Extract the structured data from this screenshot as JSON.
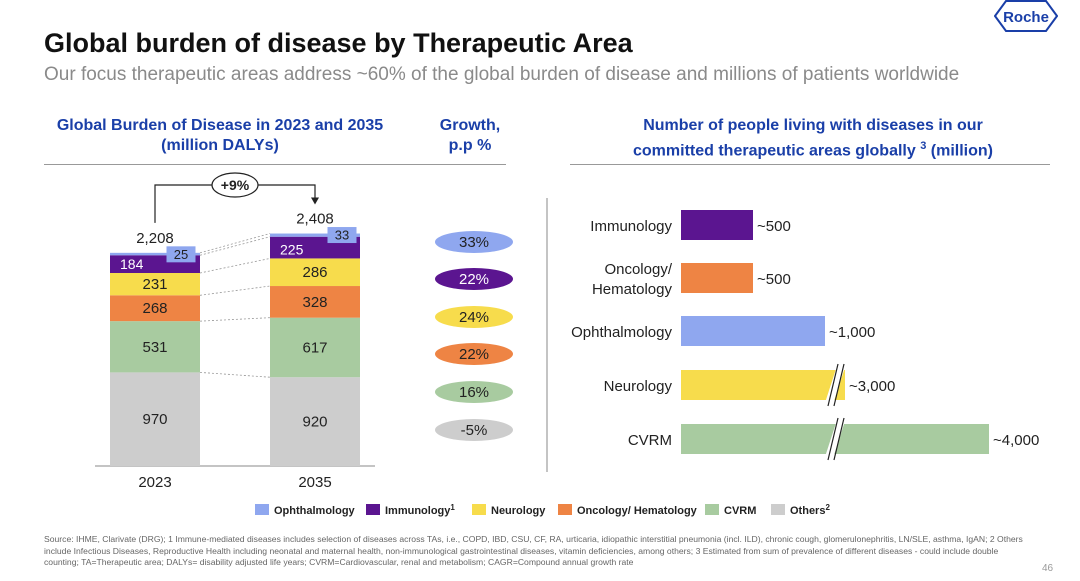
{
  "header": {
    "title": "Global burden of disease by Therapeutic Area",
    "subtitle": "Our focus therapeutic areas address ~60% of the global burden of disease and millions of patients worldwide",
    "logo_text": "Roche"
  },
  "colors": {
    "Ophthalmology": "#8fa7ef",
    "Immunology": "#5b1590",
    "Neurology": "#f7dc4c",
    "Oncology/ Hematology": "#ee8444",
    "CVRM": "#a8cba0",
    "Others": "#cdcdcd"
  },
  "chart_data": [
    {
      "type": "bar",
      "stacked": true,
      "title": "Global Burden of Disease in 2023 and 2035 (million DALYs)",
      "title_lines": [
        "Global Burden of Disease in 2023 and 2035",
        "(million DALYs)"
      ],
      "categories": [
        "2023",
        "2035"
      ],
      "totals": [
        "2,208",
        "2,408"
      ],
      "series": [
        {
          "name": "Others",
          "values": [
            970,
            920
          ]
        },
        {
          "name": "CVRM",
          "values": [
            531,
            617
          ]
        },
        {
          "name": "Oncology/ Hematology",
          "values": [
            268,
            328
          ]
        },
        {
          "name": "Neurology",
          "values": [
            231,
            286
          ]
        },
        {
          "name": "Immunology",
          "values": [
            184,
            225
          ]
        },
        {
          "name": "Ophthalmology",
          "values": [
            25,
            33
          ]
        }
      ],
      "change_annotation": "+9%",
      "legend": [
        "Ophthalmology",
        "Immunology",
        "Neurology",
        "Oncology/ Hematology",
        "CVRM",
        "Others"
      ],
      "legend_labels": [
        "Ophthalmology",
        "Immunology",
        "Neurology",
        "Oncology/ Hematology",
        "CVRM",
        "Others"
      ],
      "legend_sups": [
        "",
        "1",
        "",
        "",
        "",
        "2"
      ],
      "legend_placement": "bottom"
    },
    {
      "type": "table",
      "title": "Growth, p.p %",
      "title_lines": [
        "Growth,",
        "p.p %"
      ],
      "rows": [
        {
          "name": "Ophthalmology",
          "value": "33%"
        },
        {
          "name": "Immunology",
          "value": "22%"
        },
        {
          "name": "Neurology",
          "value": "24%"
        },
        {
          "name": "Oncology/ Hematology",
          "value": "22%"
        },
        {
          "name": "CVRM",
          "value": "16%"
        },
        {
          "name": "Others",
          "value": "-5%"
        }
      ]
    },
    {
      "type": "bar",
      "orientation": "horizontal",
      "title": "Number of people living with diseases in our committed therapeutic areas globally 3 (million)",
      "title_lines": [
        "Number of people living with diseases in our",
        "committed therapeutic areas globally",
        "3",
        " (million)"
      ],
      "categories": [
        "Immunology",
        "Oncology/ Hematology",
        "Ophthalmology",
        "Neurology",
        "CVRM"
      ],
      "category_lines": [
        [
          "Immunology"
        ],
        [
          "Oncology/",
          "Hematology"
        ],
        [
          "Ophthalmology"
        ],
        [
          "Neurology"
        ],
        [
          "CVRM"
        ]
      ],
      "values": [
        500,
        500,
        1000,
        3000,
        4000
      ],
      "value_labels": [
        "~500",
        "~500",
        "~1,000",
        "~3,000",
        "~4,000"
      ],
      "axis_break": true
    }
  ],
  "footer": {
    "source": "Source: IHME, Clarivate (DRG); 1 Immune-mediated diseases includes selection of diseases across TAs, i.e., COPD, IBD, CSU, CF, RA, urticaria, idiopathic interstitial pneumonia (incl. ILD), chronic cough, glomerulonephritis, LN/SLE, asthma, IgAN; 2 Others include Infectious Diseases, Reproductive Health including neonatal and maternal health, non-immunological gastrointestinal diseases, vitamin deficiencies, among others; 3 Estimated from sum of prevalence of different diseases - could include double counting; TA=Therapeutic area; DALYs= disability adjusted life years; CVRM=Cardiovascular, renal and metabolism; CAGR=Compound annual growth rate",
    "page_number": "46"
  }
}
